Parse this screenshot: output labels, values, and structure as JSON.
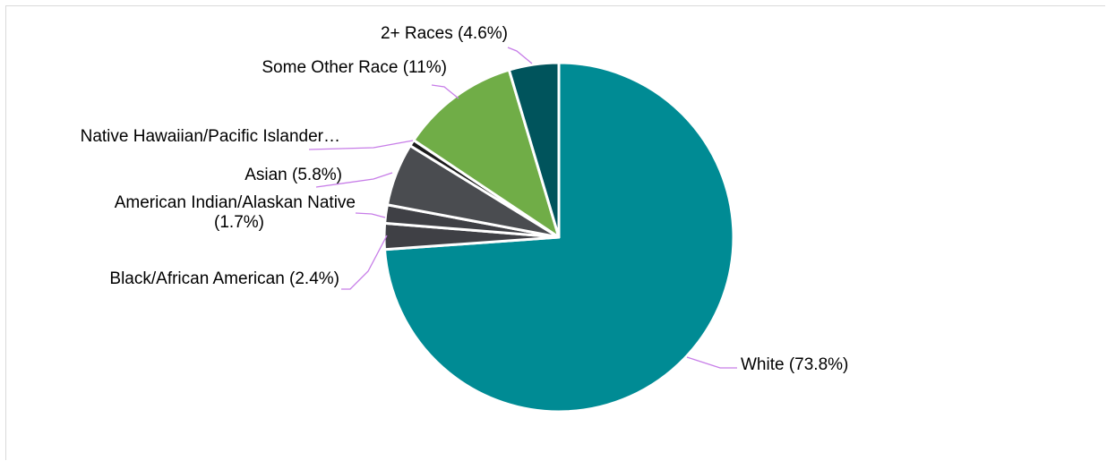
{
  "chart_data": {
    "type": "pie",
    "title": "",
    "start_angle_deg": 0,
    "direction": "clockwise",
    "slice_border_color": "#ffffff",
    "leader_line_color": "#c77de8",
    "series": [
      {
        "name": "",
        "slices": [
          {
            "category": "White",
            "value": 73.8,
            "label_lines": [
              "White (73.8%)"
            ],
            "color": "#008b94",
            "label_side": "right"
          },
          {
            "category": "Black/African American",
            "value": 2.4,
            "label_lines": [
              "Black/African American (2.4%)"
            ],
            "color": "#3f4045",
            "label_side": "left"
          },
          {
            "category": "American Indian/Alaskan Native",
            "value": 1.7,
            "label_lines": [
              "American Indian/Alaskan Native",
              "(1.7%)"
            ],
            "color": "#3f4045",
            "label_side": "left"
          },
          {
            "category": "Asian",
            "value": 5.8,
            "label_lines": [
              "Asian (5.8%)"
            ],
            "color": "#4a4c50",
            "label_side": "left"
          },
          {
            "category": "Native Hawaiian/Pacific Islander",
            "value": 0.6,
            "label_lines": [
              "Native Hawaiian/Pacific Islander…"
            ],
            "color": "#1b1b1b",
            "label_side": "left"
          },
          {
            "category": "Some Other Race",
            "value": 11,
            "label_lines": [
              "Some Other Race (11%)"
            ],
            "color": "#70ad47",
            "label_side": "left"
          },
          {
            "category": "2+ Races",
            "value": 4.6,
            "label_lines": [
              "2+ Races (4.6%)"
            ],
            "color": "#00545c",
            "label_side": "left"
          }
        ]
      }
    ]
  }
}
